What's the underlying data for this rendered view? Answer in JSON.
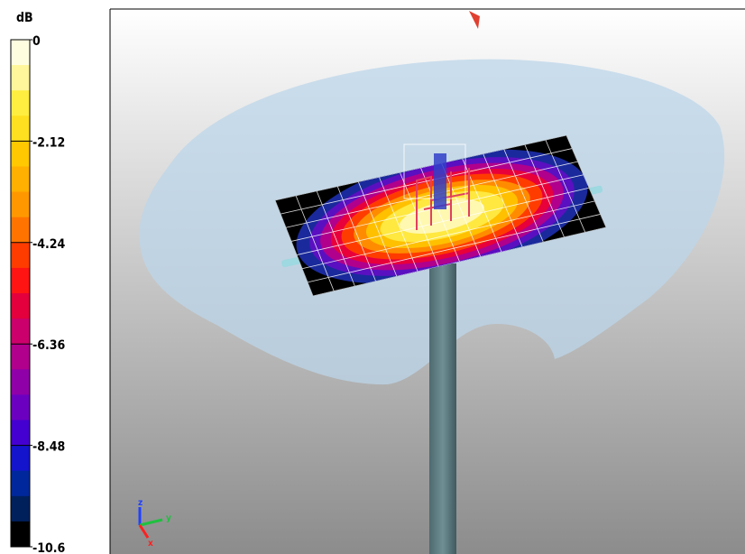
{
  "colorbar": {
    "unit": "dB",
    "lim": [
      -10.6,
      0
    ],
    "ticks": [
      0,
      -2.12,
      -4.24,
      -6.36,
      -8.48,
      -10.6
    ],
    "colors": [
      "#fffde0",
      "#fff59a",
      "#ffee40",
      "#ffe020",
      "#ffc800",
      "#ffb000",
      "#ff9800",
      "#ff7400",
      "#ff3c00",
      "#ff1414",
      "#e4003c",
      "#cc006c",
      "#b0008c",
      "#9000a8",
      "#6c00c0",
      "#4400d0",
      "#1414cc",
      "#00289c",
      "#00205c",
      "#000000"
    ]
  },
  "axes_triad": {
    "z": "z",
    "y": "y",
    "x": "x"
  }
}
